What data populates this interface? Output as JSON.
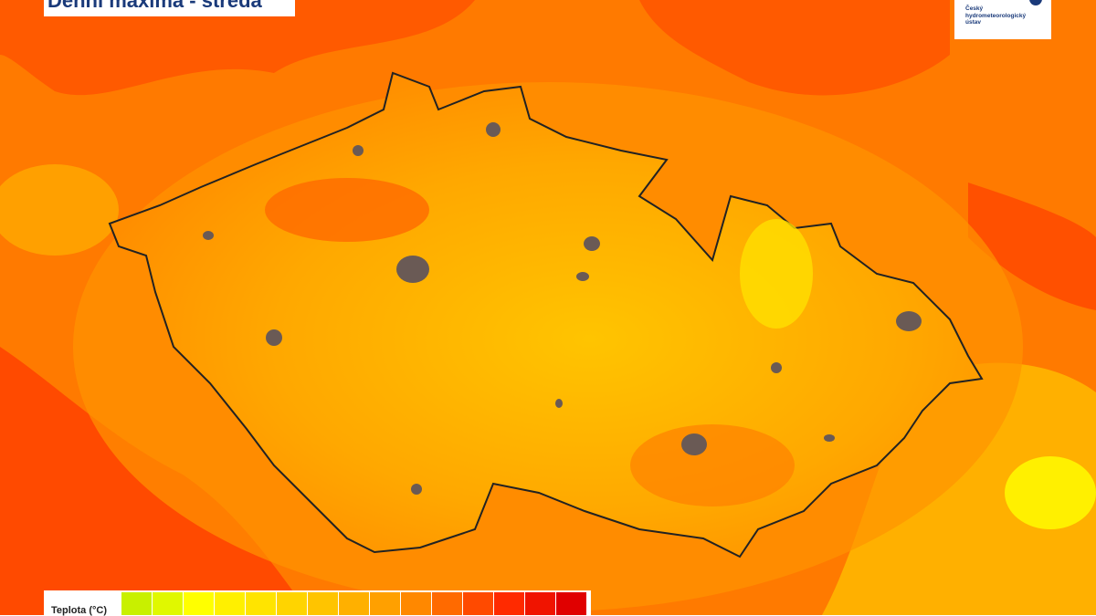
{
  "header": {
    "title": "Denní maxima - středa"
  },
  "logo": {
    "text": "Český hydrometeorologický ústav"
  },
  "legend": {
    "title": "Teplota (°C)"
  }
}
